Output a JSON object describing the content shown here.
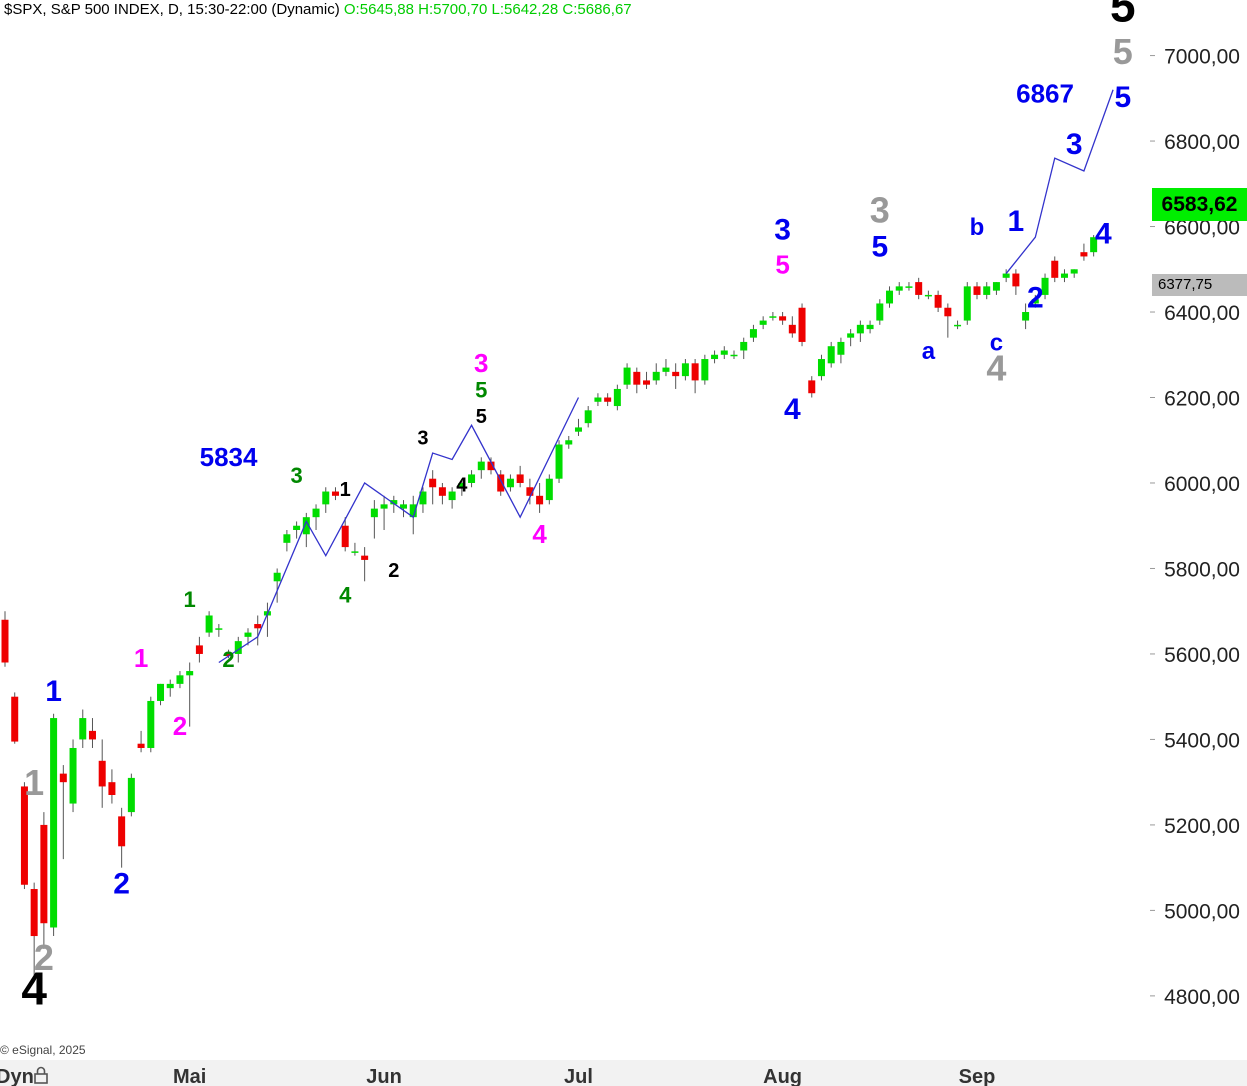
{
  "header": {
    "title": "$SPX, S&P 500 INDEX, D, 15:30-22:00 (Dynamic)",
    "ohlc": "O:5645,88 H:5700,70 L:5642,28 C:5686,67"
  },
  "copyright": "© eSignal, 2025",
  "time_axis": {
    "dyn_label": "Dyn",
    "icon": "lock-icon"
  },
  "price_badges": {
    "last": "6583,62",
    "reference": "6377,75"
  },
  "colors": {
    "up": "#00dd00",
    "down": "#ee0000",
    "wave_line": "#3333cc",
    "blue": "#0000ee",
    "magenta": "#ff00ff",
    "green": "#008800",
    "gray": "#999999",
    "black": "#000000"
  },
  "chart_data": {
    "type": "candlestick",
    "title": "$SPX, S&P 500 INDEX, D, 15:30-22:00 (Dynamic)",
    "ylim": [
      4650,
      7130
    ],
    "y_ticks": [
      4800,
      5000,
      5200,
      5400,
      5600,
      5800,
      6000,
      6200,
      6400,
      6600,
      6800,
      7000
    ],
    "y_tick_labels": [
      "4800,00",
      "5000,00",
      "5200,00",
      "5400,00",
      "5600,00",
      "5800,00",
      "6000,00",
      "6200,00",
      "6400,00",
      "6600,00",
      "6800,00",
      "7000,00"
    ],
    "month_labels": [
      {
        "label": "Mai",
        "bar": 19
      },
      {
        "label": "Jun",
        "bar": 39
      },
      {
        "label": "Jul",
        "bar": 59
      },
      {
        "label": "Aug",
        "bar": 80
      },
      {
        "label": "Sep",
        "bar": 100
      }
    ],
    "candles": [
      [
        5680,
        5700,
        5570,
        5580
      ],
      [
        5500,
        5510,
        5390,
        5395
      ],
      [
        5290,
        5300,
        5050,
        5060
      ],
      [
        5050,
        5065,
        4835,
        4940
      ],
      [
        5200,
        5230,
        4910,
        4970
      ],
      [
        4960,
        5460,
        4940,
        5450
      ],
      [
        5320,
        5340,
        5120,
        5300
      ],
      [
        5250,
        5400,
        5230,
        5380
      ],
      [
        5400,
        5470,
        5380,
        5450
      ],
      [
        5420,
        5450,
        5380,
        5400
      ],
      [
        5350,
        5400,
        5240,
        5290
      ],
      [
        5300,
        5330,
        5250,
        5270
      ],
      [
        5220,
        5240,
        5100,
        5150
      ],
      [
        5230,
        5320,
        5220,
        5310
      ],
      [
        5390,
        5420,
        5370,
        5380
      ],
      [
        5380,
        5500,
        5370,
        5490
      ],
      [
        5490,
        5530,
        5480,
        5530
      ],
      [
        5520,
        5540,
        5500,
        5530
      ],
      [
        5530,
        5560,
        5520,
        5550
      ],
      [
        5550,
        5580,
        5430,
        5560
      ],
      [
        5620,
        5640,
        5580,
        5600
      ],
      [
        5650,
        5700,
        5640,
        5690
      ],
      [
        5660,
        5670,
        5640,
        5660
      ],
      [
        5600,
        5610,
        5590,
        5595
      ],
      [
        5600,
        5640,
        5580,
        5630
      ],
      [
        5640,
        5660,
        5620,
        5650
      ],
      [
        5670,
        5690,
        5620,
        5660
      ],
      [
        5690,
        5720,
        5640,
        5700
      ],
      [
        5770,
        5800,
        5720,
        5790
      ],
      [
        5860,
        5890,
        5840,
        5880
      ],
      [
        5890,
        5910,
        5870,
        5900
      ],
      [
        5880,
        5930,
        5850,
        5920
      ],
      [
        5920,
        5950,
        5890,
        5940
      ],
      [
        5950,
        5990,
        5930,
        5980
      ],
      [
        5980,
        5990,
        5960,
        5970
      ],
      [
        5900,
        5920,
        5840,
        5850
      ],
      [
        5840,
        5860,
        5830,
        5840
      ],
      [
        5830,
        5850,
        5770,
        5820
      ],
      [
        5920,
        5960,
        5870,
        5940
      ],
      [
        5940,
        5970,
        5890,
        5950
      ],
      [
        5950,
        5970,
        5930,
        5960
      ],
      [
        5940,
        5960,
        5920,
        5950
      ],
      [
        5920,
        5970,
        5880,
        5950
      ],
      [
        5950,
        5990,
        5930,
        5980
      ],
      [
        6010,
        6030,
        5950,
        5990
      ],
      [
        5990,
        6000,
        5950,
        5970
      ],
      [
        5960,
        5990,
        5940,
        5980
      ],
      [
        5990,
        6010,
        5970,
        6000
      ],
      [
        6000,
        6030,
        5990,
        6020
      ],
      [
        6030,
        6060,
        6010,
        6050
      ],
      [
        6050,
        6060,
        6020,
        6030
      ],
      [
        6020,
        6030,
        5970,
        5980
      ],
      [
        5990,
        6020,
        5980,
        6010
      ],
      [
        6020,
        6040,
        5990,
        6000
      ],
      [
        5990,
        6010,
        5950,
        5970
      ],
      [
        5970,
        6000,
        5930,
        5950
      ],
      [
        5960,
        6020,
        5950,
        6010
      ],
      [
        6010,
        6100,
        6000,
        6090
      ],
      [
        6090,
        6110,
        6080,
        6100
      ],
      [
        6120,
        6150,
        6110,
        6130
      ],
      [
        6140,
        6180,
        6130,
        6170
      ],
      [
        6190,
        6210,
        6180,
        6200
      ],
      [
        6200,
        6210,
        6180,
        6190
      ],
      [
        6180,
        6230,
        6170,
        6220
      ],
      [
        6230,
        6280,
        6220,
        6270
      ],
      [
        6260,
        6270,
        6210,
        6230
      ],
      [
        6240,
        6260,
        6220,
        6230
      ],
      [
        6240,
        6280,
        6230,
        6260
      ],
      [
        6260,
        6290,
        6250,
        6270
      ],
      [
        6260,
        6280,
        6220,
        6250
      ],
      [
        6250,
        6290,
        6240,
        6280
      ],
      [
        6280,
        6290,
        6210,
        6240
      ],
      [
        6240,
        6300,
        6230,
        6290
      ],
      [
        6290,
        6310,
        6280,
        6300
      ],
      [
        6300,
        6320,
        6290,
        6310
      ],
      [
        6300,
        6310,
        6290,
        6300
      ],
      [
        6310,
        6340,
        6290,
        6330
      ],
      [
        6340,
        6370,
        6330,
        6360
      ],
      [
        6370,
        6390,
        6360,
        6380
      ],
      [
        6390,
        6400,
        6380,
        6390
      ],
      [
        6390,
        6400,
        6370,
        6380
      ],
      [
        6370,
        6390,
        6340,
        6350
      ],
      [
        6410,
        6420,
        6320,
        6330
      ],
      [
        6240,
        6250,
        6200,
        6210
      ],
      [
        6250,
        6300,
        6240,
        6290
      ],
      [
        6280,
        6330,
        6270,
        6320
      ],
      [
        6300,
        6340,
        6280,
        6330
      ],
      [
        6340,
        6360,
        6320,
        6350
      ],
      [
        6350,
        6380,
        6330,
        6370
      ],
      [
        6360,
        6380,
        6350,
        6370
      ],
      [
        6380,
        6430,
        6370,
        6420
      ],
      [
        6420,
        6460,
        6410,
        6450
      ],
      [
        6450,
        6470,
        6440,
        6460
      ],
      [
        6460,
        6470,
        6450,
        6460
      ],
      [
        6470,
        6480,
        6430,
        6440
      ],
      [
        6440,
        6450,
        6430,
        6440
      ],
      [
        6440,
        6450,
        6400,
        6410
      ],
      [
        6410,
        6420,
        6340,
        6390
      ],
      [
        6370,
        6380,
        6360,
        6370
      ],
      [
        6380,
        6470,
        6370,
        6460
      ],
      [
        6460,
        6470,
        6430,
        6440
      ],
      [
        6440,
        6470,
        6430,
        6460
      ],
      [
        6450,
        6470,
        6440,
        6470
      ],
      [
        6480,
        6500,
        6470,
        6490
      ],
      [
        6490,
        6500,
        6440,
        6460
      ],
      [
        6380,
        6420,
        6360,
        6400
      ],
      [
        6420,
        6440,
        6410,
        6430
      ],
      [
        6440,
        6490,
        6430,
        6480
      ],
      [
        6520,
        6530,
        6470,
        6480
      ],
      [
        6480,
        6500,
        6470,
        6490
      ],
      [
        6490,
        6500,
        6480,
        6500
      ],
      [
        6540,
        6560,
        6520,
        6530
      ],
      [
        6540,
        6580,
        6530,
        6575
      ]
    ],
    "wave_path": [
      [
        22,
        5580
      ],
      [
        26,
        5640
      ],
      [
        31,
        5910
      ],
      [
        33,
        5830
      ],
      [
        37,
        6000
      ],
      [
        42,
        5920
      ],
      [
        44,
        6070
      ],
      [
        46,
        6055
      ],
      [
        48,
        6135
      ],
      [
        53,
        5920
      ],
      [
        59,
        6200
      ]
    ],
    "wave_projection": [
      [
        103,
        6490
      ],
      [
        106,
        6575
      ],
      [
        108,
        6760
      ],
      [
        111,
        6730
      ],
      [
        114,
        6920
      ]
    ],
    "annotations": [
      {
        "text": "4",
        "bar": 3,
        "y": 4780,
        "color": "black",
        "size": 46
      },
      {
        "text": "2",
        "bar": 4,
        "y": 4860,
        "color": "gray",
        "size": 36
      },
      {
        "text": "1",
        "bar": 3,
        "y": 5270,
        "color": "gray",
        "size": 36
      },
      {
        "text": "1",
        "bar": 5,
        "y": 5490,
        "color": "blue",
        "size": 30
      },
      {
        "text": "2",
        "bar": 12,
        "y": 5040,
        "color": "blue",
        "size": 30
      },
      {
        "text": "1",
        "bar": 14,
        "y": 5570,
        "color": "magenta",
        "size": 26
      },
      {
        "text": "2",
        "bar": 18,
        "y": 5410,
        "color": "magenta",
        "size": 26
      },
      {
        "text": "1",
        "bar": 19,
        "y": 5710,
        "color": "green",
        "size": 22
      },
      {
        "text": "2",
        "bar": 23,
        "y": 5570,
        "color": "green",
        "size": 22
      },
      {
        "text": "5834",
        "bar": 23,
        "y": 6040,
        "color": "blue",
        "size": 26
      },
      {
        "text": "3",
        "bar": 30,
        "y": 6000,
        "color": "green",
        "size": 22
      },
      {
        "text": "4",
        "bar": 35,
        "y": 5720,
        "color": "green",
        "size": 22
      },
      {
        "text": "1",
        "bar": 35,
        "y": 5970,
        "color": "black",
        "size": 20
      },
      {
        "text": "2",
        "bar": 40,
        "y": 5780,
        "color": "black",
        "size": 20
      },
      {
        "text": "3",
        "bar": 43,
        "y": 6090,
        "color": "black",
        "size": 20
      },
      {
        "text": "4",
        "bar": 47,
        "y": 5980,
        "color": "black",
        "size": 20
      },
      {
        "text": "5",
        "bar": 49,
        "y": 6140,
        "color": "black",
        "size": 20
      },
      {
        "text": "5",
        "bar": 49,
        "y": 6200,
        "color": "green",
        "size": 22
      },
      {
        "text": "3",
        "bar": 49,
        "y": 6260,
        "color": "magenta",
        "size": 26
      },
      {
        "text": "4",
        "bar": 55,
        "y": 5860,
        "color": "magenta",
        "size": 26
      },
      {
        "text": "3",
        "bar": 80,
        "y": 6570,
        "color": "blue",
        "size": 30
      },
      {
        "text": "5",
        "bar": 80,
        "y": 6490,
        "color": "magenta",
        "size": 26
      },
      {
        "text": "4",
        "bar": 81,
        "y": 6150,
        "color": "blue",
        "size": 30
      },
      {
        "text": "3",
        "bar": 90,
        "y": 6610,
        "color": "gray",
        "size": 36
      },
      {
        "text": "5",
        "bar": 90,
        "y": 6530,
        "color": "blue",
        "size": 30
      },
      {
        "text": "a",
        "bar": 95,
        "y": 6290,
        "color": "blue",
        "size": 24
      },
      {
        "text": "b",
        "bar": 100,
        "y": 6580,
        "color": "blue",
        "size": 24
      },
      {
        "text": "1",
        "bar": 104,
        "y": 6590,
        "color": "blue",
        "size": 30
      },
      {
        "text": "c",
        "bar": 102,
        "y": 6310,
        "color": "blue",
        "size": 24
      },
      {
        "text": "4",
        "bar": 102,
        "y": 6240,
        "color": "gray",
        "size": 36
      },
      {
        "text": "2",
        "bar": 106,
        "y": 6410,
        "color": "blue",
        "size": 30
      },
      {
        "text": "3",
        "bar": 110,
        "y": 6770,
        "color": "blue",
        "size": 30
      },
      {
        "text": "4",
        "bar": 113,
        "y": 6560,
        "color": "blue",
        "size": 30
      },
      {
        "text": "6867",
        "bar": 107,
        "y": 6890,
        "color": "blue",
        "size": 26
      },
      {
        "text": "5",
        "bar": 115,
        "y": 6880,
        "color": "blue",
        "size": 30
      },
      {
        "text": "5",
        "bar": 115,
        "y": 6980,
        "color": "gray",
        "size": 36
      },
      {
        "text": "5",
        "bar": 115,
        "y": 7080,
        "color": "black",
        "size": 46
      }
    ]
  }
}
